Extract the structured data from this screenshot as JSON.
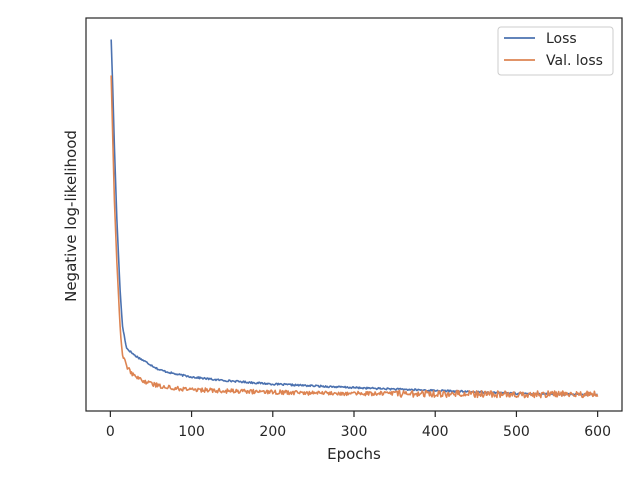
{
  "chart_data": {
    "type": "line",
    "title": "",
    "xlabel": "Epochs",
    "ylabel": "Negative log-likelihood",
    "xlim": [
      -30,
      630
    ],
    "ylim": [
      -0.035,
      1.06
    ],
    "y_tick_labels_shown": false,
    "xticks": [
      0,
      100,
      200,
      300,
      400,
      500,
      600
    ],
    "xtick_labels": [
      "0",
      "100",
      "200",
      "300",
      "400",
      "500",
      "600"
    ],
    "grid": false,
    "legend": {
      "position": "top-right",
      "entries": [
        "Loss",
        "Val. loss"
      ]
    },
    "x": [
      1,
      600
    ],
    "series": [
      {
        "name": "Loss",
        "color": "#4C72B0",
        "points": [
          [
            1,
            1.0
          ],
          [
            3,
            0.86
          ],
          [
            5,
            0.7
          ],
          [
            8,
            0.5
          ],
          [
            12,
            0.3
          ],
          [
            15,
            0.2
          ],
          [
            20,
            0.14
          ],
          [
            30,
            0.12
          ],
          [
            45,
            0.1
          ],
          [
            60,
            0.08
          ],
          [
            80,
            0.068
          ],
          [
            100,
            0.06
          ],
          [
            130,
            0.052
          ],
          [
            170,
            0.045
          ],
          [
            200,
            0.04
          ],
          [
            250,
            0.035
          ],
          [
            300,
            0.03
          ],
          [
            350,
            0.026
          ],
          [
            400,
            0.022
          ],
          [
            450,
            0.018
          ],
          [
            500,
            0.014
          ],
          [
            550,
            0.012
          ],
          [
            600,
            0.01
          ]
        ]
      },
      {
        "name": "Val. loss",
        "color": "#DD8452",
        "points": [
          [
            1,
            0.9
          ],
          [
            3,
            0.72
          ],
          [
            5,
            0.55
          ],
          [
            8,
            0.38
          ],
          [
            12,
            0.2
          ],
          [
            15,
            0.12
          ],
          [
            20,
            0.09
          ],
          [
            30,
            0.06
          ],
          [
            45,
            0.045
          ],
          [
            60,
            0.035
          ],
          [
            80,
            0.028
          ],
          [
            100,
            0.025
          ],
          [
            150,
            0.02
          ],
          [
            200,
            0.018
          ],
          [
            250,
            0.015
          ],
          [
            300,
            0.014
          ],
          [
            400,
            0.013
          ],
          [
            500,
            0.012
          ],
          [
            600,
            0.012
          ]
        ]
      }
    ]
  }
}
